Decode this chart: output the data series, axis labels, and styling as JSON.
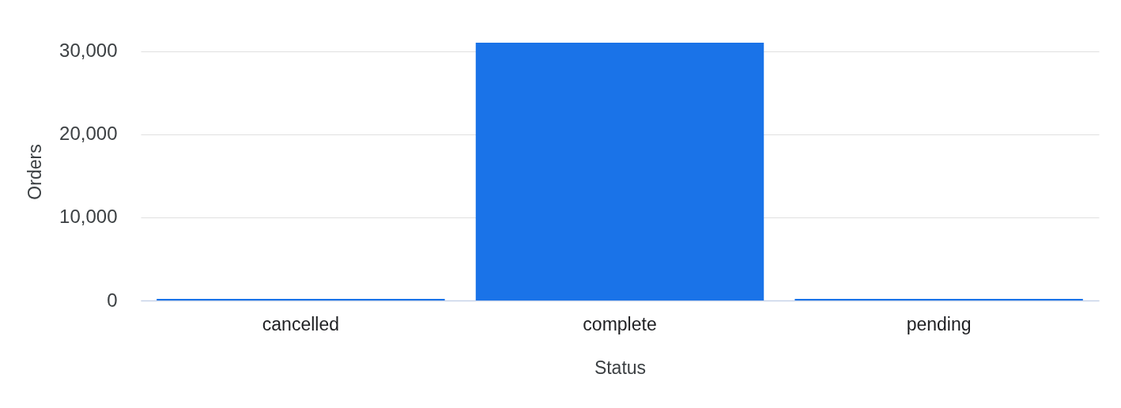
{
  "chart_data": {
    "type": "bar",
    "xlabel": "Status",
    "ylabel": "Orders",
    "categories": [
      "cancelled",
      "complete",
      "pending"
    ],
    "values": [
      200,
      31000,
      200
    ],
    "color": "#1a73e8",
    "ylim": [
      0,
      31000
    ],
    "yticks": [
      {
        "value": 0,
        "label": "0"
      },
      {
        "value": 10000,
        "label": "10,000"
      },
      {
        "value": 20000,
        "label": "20,000"
      },
      {
        "value": 30000,
        "label": "30,000"
      }
    ],
    "grid": "y"
  }
}
